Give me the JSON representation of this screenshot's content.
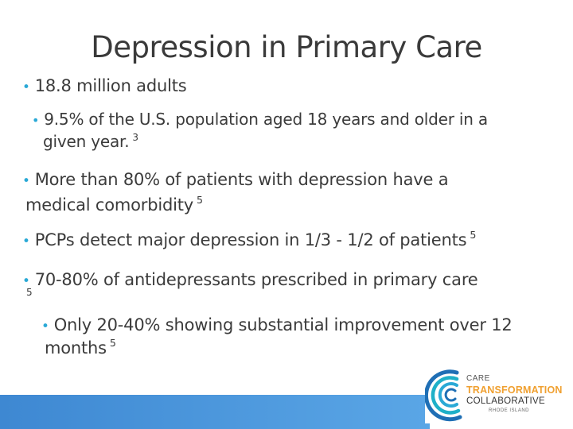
{
  "slide": {
    "title": "Depression in Primary Care",
    "bullets": [
      {
        "text": "18.8 million adults",
        "ref": ""
      },
      {
        "text": "9.5% of the U.S. population aged 18 years and older in a",
        "ref": ""
      },
      {
        "text": "given year.",
        "ref": "3"
      },
      {
        "text": "More than 80% of patients with depression have a",
        "ref": ""
      },
      {
        "text": "medical comorbidity",
        "ref": "5"
      },
      {
        "text": "PCPs detect major depression in 1/3 - 1/2 of patients",
        "ref": "5"
      },
      {
        "text": "70-80% of antidepressants prescribed in primary care",
        "ref": "5"
      },
      {
        "text": "Only 20-40% showing substantial improvement over 12",
        "ref": ""
      },
      {
        "text": "months",
        "ref": "5"
      }
    ],
    "bullet_glyph": "•"
  },
  "logo": {
    "line1": "CARE",
    "line2": "TRANSFORMATION",
    "line3": "COLLABORATIVE",
    "line4": "RHODE ISLAND"
  },
  "colors": {
    "bullet_accent": "#2aa9d6",
    "bar": "#4a94dc",
    "logo_orange": "#f0a030",
    "logo_teal": "#1fb0c8",
    "logo_blue": "#1f6fb5"
  }
}
